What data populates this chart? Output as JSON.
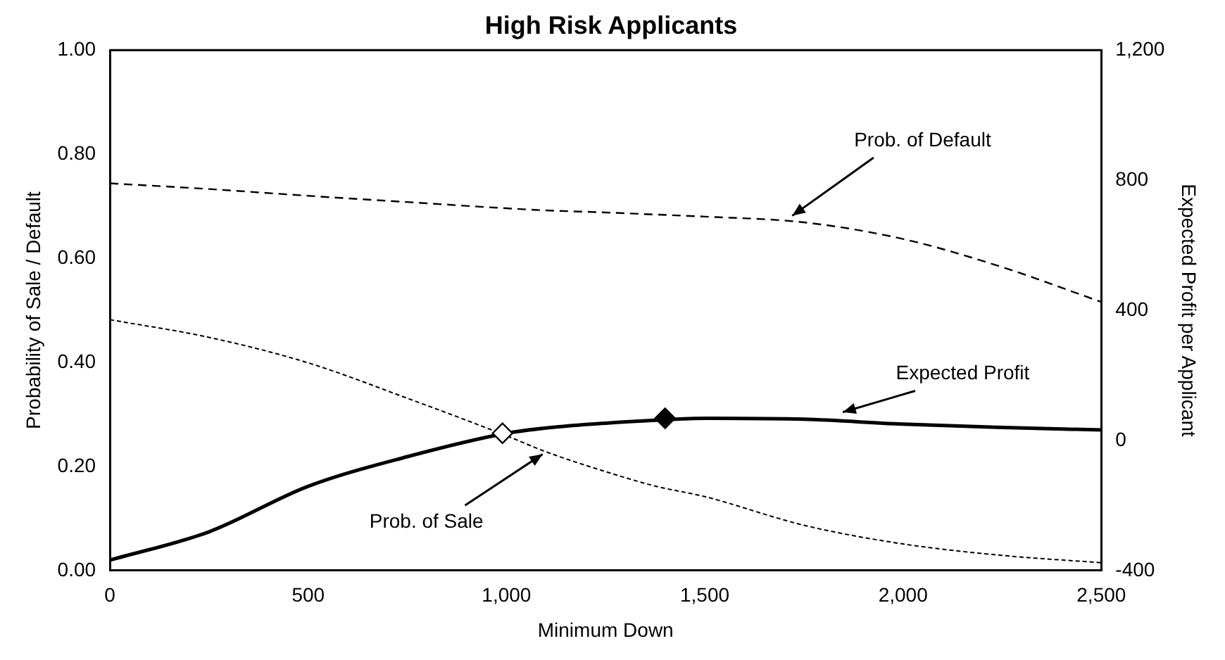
{
  "chart_data": {
    "type": "line",
    "title": "High Risk Applicants",
    "xlabel": "Minimum Down",
    "ylabel": "Probability of Sale / Default",
    "y2label": "Expected Profit per Applicant",
    "x": [
      0,
      250,
      500,
      750,
      1000,
      1100,
      1250,
      1376,
      1500,
      1750,
      2000,
      2250,
      2500
    ],
    "series": [
      {
        "color": "#000000",
        "line_style": "dashed",
        "values": [
          0.744,
          0.733,
          0.72,
          0.708,
          0.696,
          0.692,
          0.688,
          0.684,
          0.68,
          0.669,
          0.637,
          0.583,
          0.516
        ]
      },
      {
        "color": "#000000",
        "line_style": "dotted",
        "values": [
          0.482,
          0.448,
          0.399,
          0.331,
          0.259,
          0.228,
          0.19,
          0.162,
          0.142,
          0.087,
          0.051,
          0.029,
          0.015
        ]
      },
      {
        "color": "#000000",
        "line_style": "solid",
        "axis": "y2",
        "values": [
          -368,
          -281,
          -141,
          -50,
          22,
          38,
          53,
          62,
          68,
          65,
          50,
          40,
          32
        ]
      },
      {
        "type": "scatter",
        "color": "#ffffff",
        "marker": "diamond",
        "axis": "y2",
        "x": [
          990
        ],
        "values": [
          22
        ]
      },
      {
        "type": "scatter",
        "color": "#000000",
        "marker": "diamond",
        "axis": "y2",
        "x": [
          1400
        ],
        "values": [
          68
        ]
      }
    ],
    "xlim": [
      0,
      2500
    ],
    "xticks": [
      0,
      500,
      {
        "value": 1000,
        "label": "1,000"
      },
      {
        "value": 1500,
        "label": "1,500"
      },
      {
        "value": 2000,
        "label": "2,000"
      },
      {
        "value": 2500,
        "label": "2,500"
      }
    ],
    "ylim": [
      0,
      1
    ],
    "yticks": [
      {
        "value": 0,
        "label": "0.00"
      },
      {
        "value": 0.2,
        "label": "0.20"
      },
      {
        "value": 0.4,
        "label": "0.40"
      },
      {
        "value": 0.6,
        "label": "0.60"
      },
      {
        "value": 0.8,
        "label": "0.80"
      },
      {
        "value": 1,
        "label": "1.00"
      }
    ],
    "y2lim": [
      -400,
      1200
    ],
    "y2ticks": [
      -400,
      0,
      400,
      800,
      {
        "value": 1200,
        "label": "1,200"
      }
    ],
    "annotations": [
      {
        "text": "Prob. of Default",
        "x": 1712,
        "y": 0.677
      },
      {
        "text": "Prob. of Sale",
        "x": 1100,
        "y": 0.228
      },
      {
        "text": "Expected Profit",
        "x": 1838,
        "y": 0.302
      }
    ],
    "grid": false,
    "legend": false
  }
}
